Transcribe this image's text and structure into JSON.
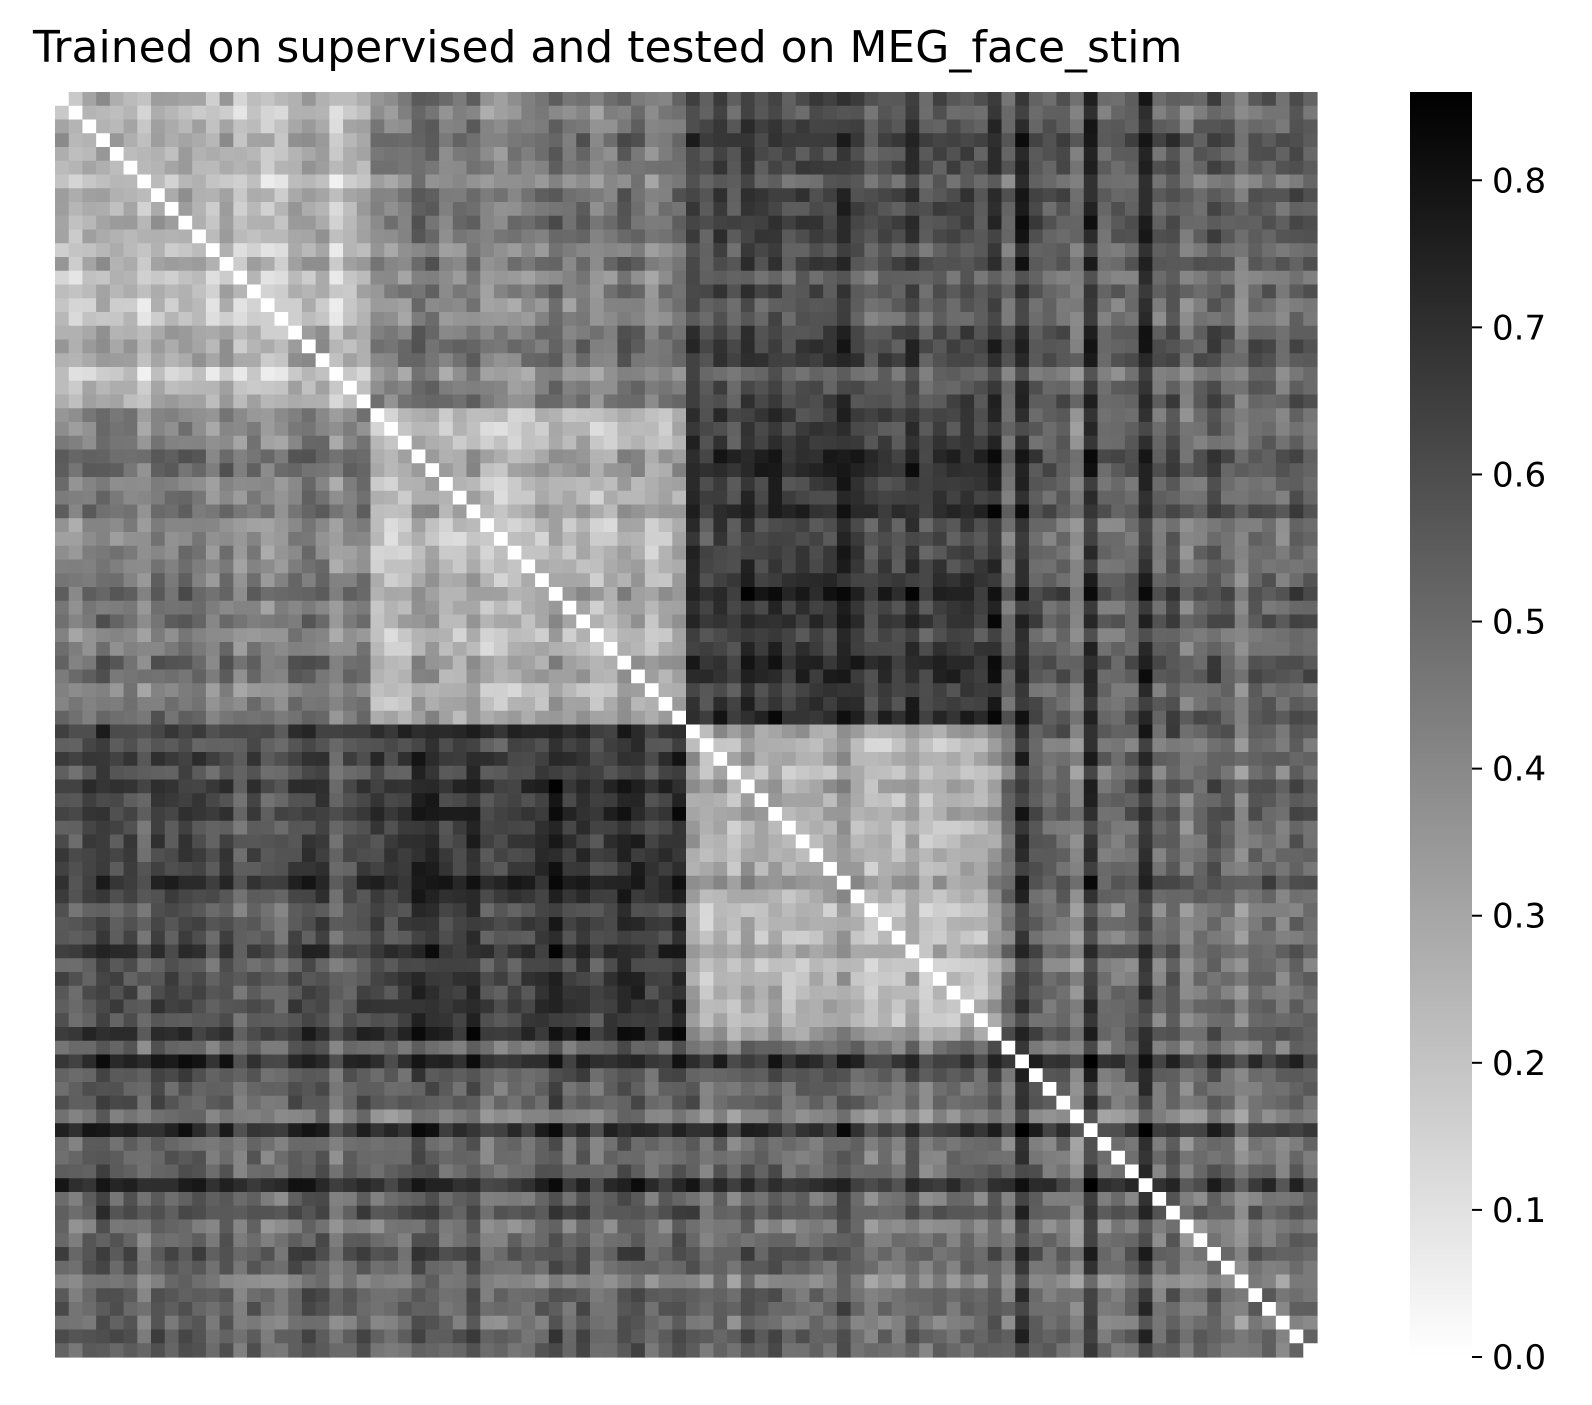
{
  "chart_data": {
    "type": "heatmap",
    "title": "Trained on supervised and tested on MEG_face_stim",
    "xlabel": "",
    "ylabel": "",
    "matrix_size": 92,
    "value_range": [
      0.0,
      0.86
    ],
    "colormap": "Greys",
    "colormap_endpoints": [
      "#ffffff",
      "#000000"
    ],
    "diagonal_value": 0.0,
    "block_structure": {
      "block_boundaries": [
        0,
        23,
        46,
        69,
        92
      ],
      "block_means": [
        [
          0.22,
          0.42,
          0.6,
          0.5
        ],
        [
          0.42,
          0.25,
          0.68,
          0.5
        ],
        [
          0.6,
          0.68,
          0.3,
          0.5
        ],
        [
          0.5,
          0.5,
          0.5,
          0.45
        ]
      ]
    },
    "colorbar": {
      "ticks": [
        0.0,
        0.1,
        0.2,
        0.3,
        0.4,
        0.5,
        0.6,
        0.7,
        0.8
      ],
      "tick_labels": [
        "0.0",
        "0.1",
        "0.2",
        "0.3",
        "0.4",
        "0.5",
        "0.6",
        "0.7",
        "0.8"
      ],
      "max": 0.86
    }
  }
}
